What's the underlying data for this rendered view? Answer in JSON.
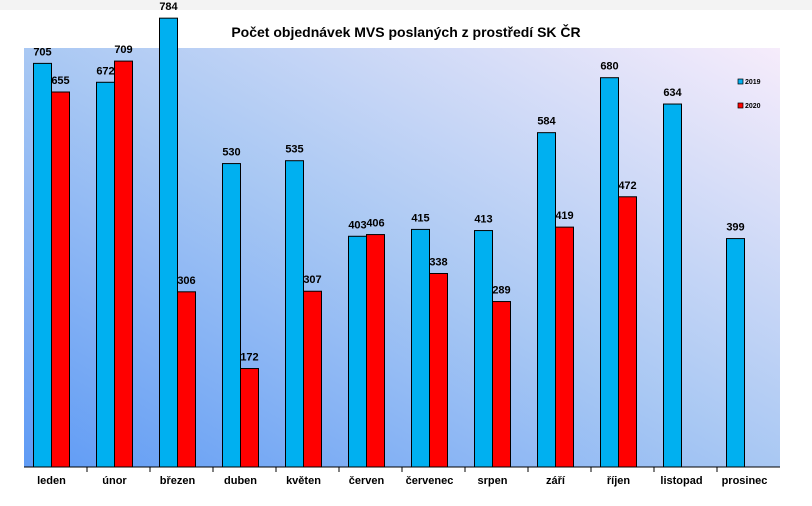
{
  "chart_data": {
    "type": "bar",
    "title": "Počet objednávek MVS poslaných z prostředí SK ČR",
    "xlabel": "",
    "ylabel": "",
    "ylim": [
      0,
      800
    ],
    "grid": false,
    "legend_position": "top-right",
    "categories": [
      "leden",
      "únor",
      "březen",
      "duben",
      "květen",
      "červen",
      "červenec",
      "srpen",
      "září",
      "říjen",
      "listopad",
      "prosinec"
    ],
    "series": [
      {
        "name": "2019",
        "color": "#00b0f0",
        "values": [
          705,
          672,
          784,
          530,
          535,
          403,
          415,
          413,
          584,
          680,
          634,
          399
        ]
      },
      {
        "name": "2020",
        "color": "#ff0000",
        "values": [
          655,
          709,
          306,
          172,
          307,
          406,
          338,
          289,
          419,
          472,
          null,
          null
        ]
      }
    ]
  }
}
